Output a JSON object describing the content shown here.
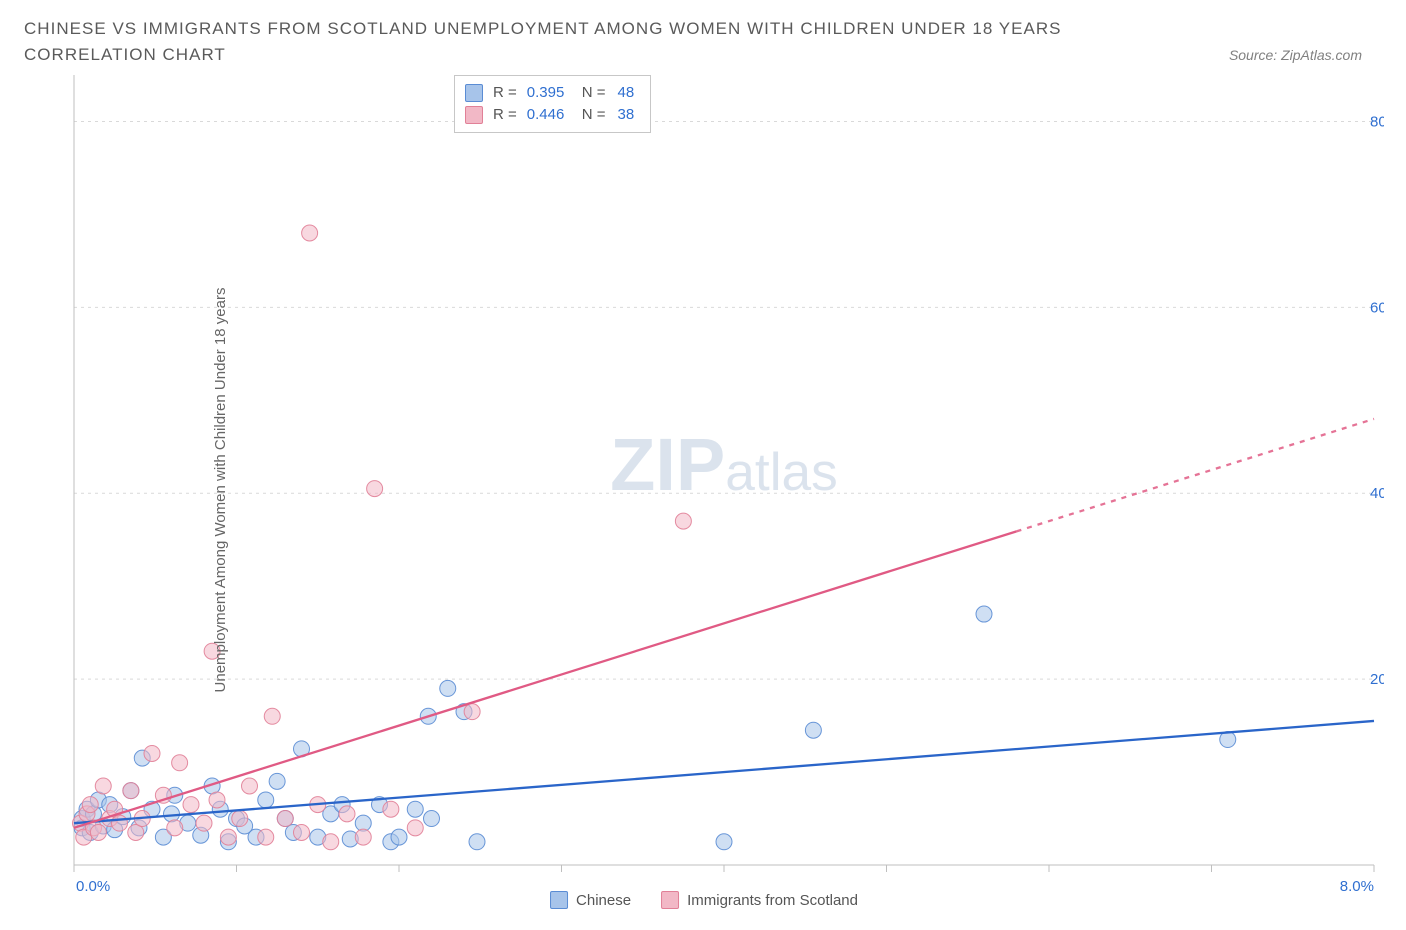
{
  "header": {
    "title": "CHINESE VS IMMIGRANTS FROM SCOTLAND UNEMPLOYMENT AMONG WOMEN WITH CHILDREN UNDER 18 YEARS CORRELATION CHART",
    "source": "Source: ZipAtlas.com"
  },
  "chart": {
    "type": "scatter",
    "y_axis_title": "Unemployment Among Women with Children Under 18 years",
    "xlim": [
      0,
      8
    ],
    "ylim": [
      0,
      85
    ],
    "x_ticks": [
      0,
      1,
      2,
      3,
      4,
      5,
      6,
      7,
      8
    ],
    "x_tick_labels_shown": {
      "0": "0.0%",
      "8": "8.0%"
    },
    "y_ticks": [
      20,
      40,
      60,
      80
    ],
    "y_tick_labels": [
      "20.0%",
      "40.0%",
      "60.0%",
      "80.0%"
    ],
    "grid_color": "#d9d9d9",
    "axis_color": "#bfbfbf",
    "tick_label_color": "#2f6fd0",
    "background_color": "#ffffff",
    "marker_radius": 8,
    "marker_opacity": 0.55,
    "series": [
      {
        "name": "Chinese",
        "color_fill": "#a7c4ea",
        "color_stroke": "#5a8cd4",
        "r_value": "0.395",
        "n_value": "48",
        "trend": {
          "x1": 0,
          "y1": 4.5,
          "x2": 8,
          "y2": 15.5,
          "solid_until_x": 8,
          "stroke": "#2a65c9",
          "stroke_width": 2.3
        },
        "points": [
          [
            0.05,
            5.0
          ],
          [
            0.05,
            4.0
          ],
          [
            0.08,
            6.0
          ],
          [
            0.1,
            3.5
          ],
          [
            0.12,
            5.5
          ],
          [
            0.15,
            7.0
          ],
          [
            0.18,
            4.2
          ],
          [
            0.22,
            6.5
          ],
          [
            0.25,
            3.8
          ],
          [
            0.3,
            5.2
          ],
          [
            0.35,
            8.0
          ],
          [
            0.4,
            4.0
          ],
          [
            0.42,
            11.5
          ],
          [
            0.48,
            6.0
          ],
          [
            0.55,
            3.0
          ],
          [
            0.6,
            5.5
          ],
          [
            0.62,
            7.5
          ],
          [
            0.7,
            4.5
          ],
          [
            0.78,
            3.2
          ],
          [
            0.85,
            8.5
          ],
          [
            0.9,
            6.0
          ],
          [
            0.95,
            2.5
          ],
          [
            1.0,
            5.0
          ],
          [
            1.05,
            4.2
          ],
          [
            1.12,
            3.0
          ],
          [
            1.18,
            7.0
          ],
          [
            1.25,
            9.0
          ],
          [
            1.3,
            5.0
          ],
          [
            1.35,
            3.5
          ],
          [
            1.4,
            12.5
          ],
          [
            1.5,
            3.0
          ],
          [
            1.58,
            5.5
          ],
          [
            1.65,
            6.5
          ],
          [
            1.7,
            2.8
          ],
          [
            1.78,
            4.5
          ],
          [
            1.88,
            6.5
          ],
          [
            1.95,
            2.5
          ],
          [
            2.0,
            3.0
          ],
          [
            2.1,
            6.0
          ],
          [
            2.18,
            16.0
          ],
          [
            2.2,
            5.0
          ],
          [
            2.3,
            19.0
          ],
          [
            2.4,
            16.5
          ],
          [
            2.48,
            2.5
          ],
          [
            4.0,
            2.5
          ],
          [
            4.55,
            14.5
          ],
          [
            5.6,
            27.0
          ],
          [
            7.1,
            13.5
          ]
        ]
      },
      {
        "name": "Immigrants from Scotland",
        "color_fill": "#f2b8c6",
        "color_stroke": "#e18097",
        "r_value": "0.446",
        "n_value": "38",
        "trend": {
          "x1": 0,
          "y1": 4.0,
          "x2": 8,
          "y2": 48.0,
          "solid_until_x": 5.8,
          "stroke": "#e05a84",
          "stroke_width": 2.3
        },
        "points": [
          [
            0.04,
            4.5
          ],
          [
            0.06,
            3.0
          ],
          [
            0.08,
            5.5
          ],
          [
            0.1,
            6.5
          ],
          [
            0.12,
            4.0
          ],
          [
            0.15,
            3.5
          ],
          [
            0.18,
            8.5
          ],
          [
            0.22,
            5.0
          ],
          [
            0.25,
            6.0
          ],
          [
            0.28,
            4.5
          ],
          [
            0.35,
            8.0
          ],
          [
            0.38,
            3.5
          ],
          [
            0.42,
            5.0
          ],
          [
            0.48,
            12.0
          ],
          [
            0.55,
            7.5
          ],
          [
            0.62,
            4.0
          ],
          [
            0.65,
            11.0
          ],
          [
            0.72,
            6.5
          ],
          [
            0.8,
            4.5
          ],
          [
            0.85,
            23.0
          ],
          [
            0.88,
            7.0
          ],
          [
            0.95,
            3.0
          ],
          [
            1.02,
            5.0
          ],
          [
            1.08,
            8.5
          ],
          [
            1.18,
            3.0
          ],
          [
            1.22,
            16.0
          ],
          [
            1.3,
            5.0
          ],
          [
            1.4,
            3.5
          ],
          [
            1.45,
            68.0
          ],
          [
            1.5,
            6.5
          ],
          [
            1.58,
            2.5
          ],
          [
            1.68,
            5.5
          ],
          [
            1.78,
            3.0
          ],
          [
            1.85,
            40.5
          ],
          [
            1.95,
            6.0
          ],
          [
            2.1,
            4.0
          ],
          [
            2.45,
            16.5
          ],
          [
            3.75,
            37.0
          ]
        ]
      }
    ],
    "watermark": {
      "text_a": "ZIP",
      "text_b": "atlas",
      "fontsize": 74
    },
    "stats_box": {
      "r_label": "R =",
      "n_label": "N ="
    },
    "bottom_legend": [
      {
        "label": "Chinese",
        "fill": "#a7c4ea",
        "stroke": "#5a8cd4"
      },
      {
        "label": "Immigrants from Scotland",
        "fill": "#f2b8c6",
        "stroke": "#e18097"
      }
    ]
  }
}
